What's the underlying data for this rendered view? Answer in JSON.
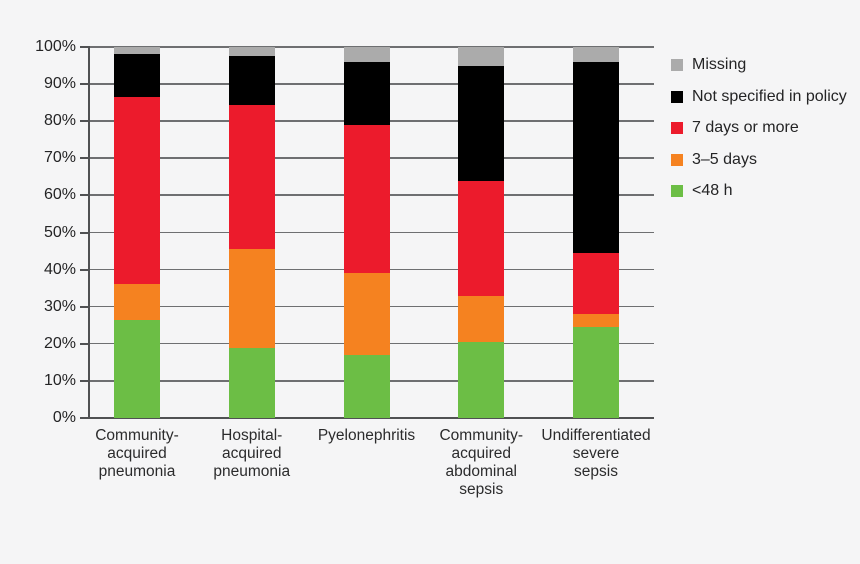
{
  "chart_data": {
    "type": "bar",
    "stacked": true,
    "orientation": "vertical",
    "title": "",
    "xlabel": "",
    "ylabel": "",
    "ylim": [
      0,
      100
    ],
    "grid": true,
    "legend_position": "right",
    "background_color": "#f5f5f6",
    "gridline_color": "#6e6f71",
    "axis_color": "#505153",
    "yticks": [
      "0%",
      "10%",
      "20%",
      "30%",
      "40%",
      "50%",
      "60%",
      "70%",
      "80%",
      "90%",
      "100%"
    ],
    "categories": [
      "Community-acquired pneumonia",
      "Hospital-acquired pneumonia",
      "Pyelonephritis",
      "Community-acquired abdominal sepsis",
      "Undifferentiated severe sepsis"
    ],
    "category_label_lines": [
      [
        "Community-",
        "acquired",
        "pneumonia"
      ],
      [
        "Hospital-",
        "acquired",
        "pneumonia"
      ],
      [
        "Pyelonephritis"
      ],
      [
        "Community-",
        "acquired",
        "abdominal",
        "sepsis"
      ],
      [
        "Undifferentiated",
        "severe",
        "sepsis"
      ]
    ],
    "series": [
      {
        "name": "<48 h",
        "color": "#6cbe45",
        "values": [
          26.5,
          19,
          17,
          20.5,
          24.5
        ]
      },
      {
        "name": "3–5 days",
        "color": "#f58220",
        "values": [
          9.5,
          26.5,
          22,
          12.5,
          3.5
        ]
      },
      {
        "name": "7 days or more",
        "color": "#ec1b2c",
        "values": [
          50.5,
          39,
          40,
          31,
          16.5
        ]
      },
      {
        "name": "Not specified in policy",
        "color": "#000000",
        "values": [
          11.5,
          13,
          17,
          31,
          51.5
        ]
      },
      {
        "name": "Missing",
        "color": "#ababab",
        "values": [
          2,
          2.5,
          4,
          5,
          4
        ]
      }
    ],
    "legend": {
      "items": [
        {
          "label": "Missing",
          "color": "#ababab"
        },
        {
          "label": "Not specified in policy",
          "color": "#000000"
        },
        {
          "label": "7 days or more",
          "color": "#ec1b2c"
        },
        {
          "label": "3–5 days",
          "color": "#f58220"
        },
        {
          "label": "<48 h",
          "color": "#6cbe45"
        }
      ]
    }
  }
}
